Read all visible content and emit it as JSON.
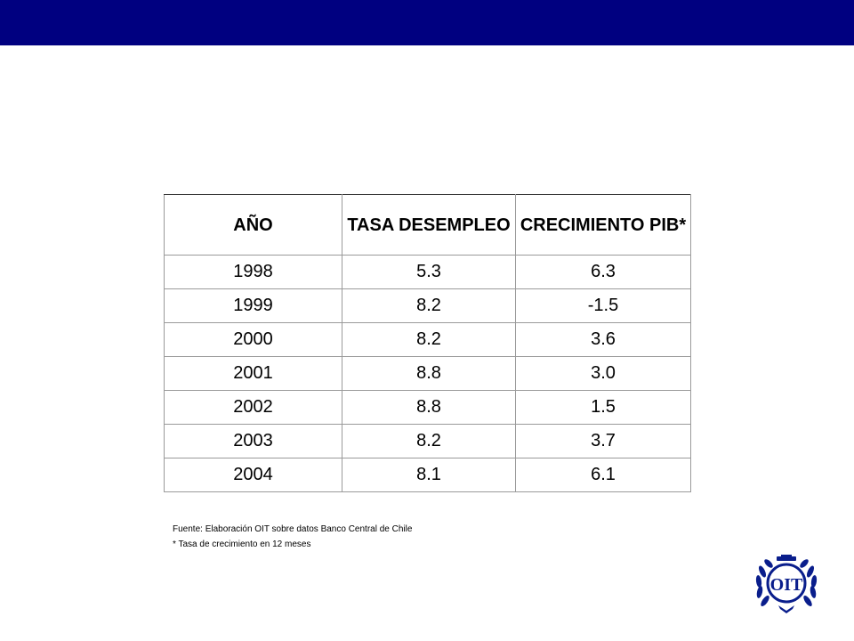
{
  "table": {
    "headers": [
      "AÑO",
      "TASA DESEMPLEO",
      "CRECIMIENTO PIB*"
    ],
    "rows": [
      [
        "1998",
        "5.3",
        "6.3"
      ],
      [
        "1999",
        "8.2",
        "-1.5"
      ],
      [
        "2000",
        "8.2",
        "3.6"
      ],
      [
        "2001",
        "8.8",
        "3.0"
      ],
      [
        "2002",
        "8.8",
        "1.5"
      ],
      [
        "2003",
        "8.2",
        "3.7"
      ],
      [
        "2004",
        "8.1",
        "6.1"
      ]
    ]
  },
  "notes": {
    "source": "Fuente: Elaboración OIT sobre datos Banco Central de Chile",
    "footnote": "* Tasa de crecimiento en 12 meses"
  },
  "logo": {
    "text": "OIT",
    "color": "#0a1e8c"
  },
  "colors": {
    "top_bar": "#000080"
  }
}
